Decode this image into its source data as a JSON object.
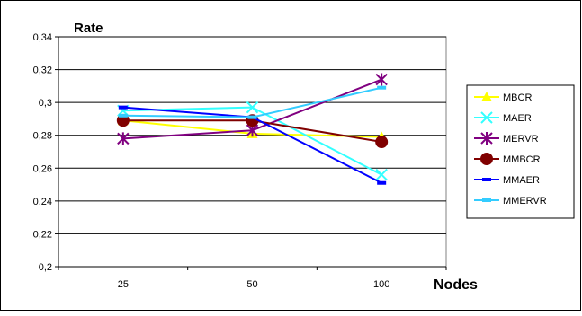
{
  "chart_data": {
    "type": "line",
    "ylabel": "Rate",
    "xlabel": "Nodes",
    "categories": [
      "25",
      "50",
      "100"
    ],
    "ylim": [
      0.2,
      0.34
    ],
    "yticks": [
      "0,2",
      "0,22",
      "0,24",
      "0,26",
      "0,28",
      "0,3",
      "0,32",
      "0,34"
    ],
    "ytick_values": [
      0.2,
      0.22,
      0.24,
      0.26,
      0.28,
      0.3,
      0.32,
      0.34
    ],
    "grid": "horizontal",
    "legend_position": "right",
    "series": [
      {
        "name": "MBCR",
        "color": "#ffff00",
        "marker": "triangle",
        "values": [
          0.289,
          0.281,
          0.279
        ]
      },
      {
        "name": "MAER",
        "color": "#33ffff",
        "marker": "x",
        "values": [
          0.295,
          0.297,
          0.256
        ]
      },
      {
        "name": "MERVR",
        "color": "#800080",
        "marker": "star",
        "values": [
          0.278,
          0.283,
          0.314
        ]
      },
      {
        "name": "MMBCR",
        "color": "#800000",
        "marker": "circle",
        "values": [
          0.289,
          0.289,
          0.276
        ]
      },
      {
        "name": "MMAER",
        "color": "#0000ff",
        "marker": "dash",
        "values": [
          0.297,
          0.291,
          0.251
        ]
      },
      {
        "name": "MMERVR",
        "color": "#33ccff",
        "marker": "dash",
        "values": [
          0.292,
          0.291,
          0.309
        ]
      }
    ]
  }
}
